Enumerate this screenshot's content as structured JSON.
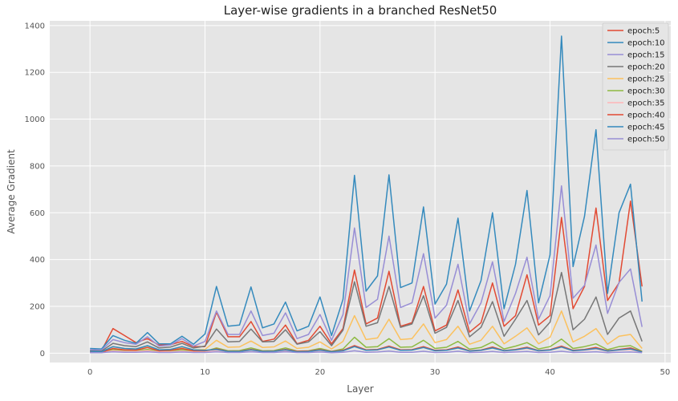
{
  "chart_data": {
    "type": "line",
    "title": "Layer-wise gradients in a branched ResNet50",
    "xlabel": "Layer",
    "ylabel": "Average Gradient",
    "xlim": [
      -3.5,
      50.5
    ],
    "ylim": [
      -40,
      1420
    ],
    "xticks": [
      0,
      10,
      20,
      30,
      40,
      50
    ],
    "yticks": [
      0,
      200,
      400,
      600,
      800,
      1000,
      1200,
      1400
    ],
    "grid": true,
    "legend_position": "top-right",
    "x": [
      0,
      1,
      2,
      3,
      4,
      5,
      6,
      7,
      8,
      9,
      10,
      11,
      12,
      13,
      14,
      15,
      16,
      17,
      18,
      19,
      20,
      21,
      22,
      23,
      24,
      25,
      26,
      27,
      28,
      29,
      30,
      31,
      32,
      33,
      34,
      35,
      36,
      37,
      38,
      39,
      40,
      41,
      42,
      43,
      44,
      45,
      46,
      47,
      48
    ],
    "series": [
      {
        "name": "epoch:5",
        "color": "#E24A33",
        "values": [
          12,
          10,
          105,
          75,
          45,
          62,
          34,
          36,
          50,
          28,
          28,
          175,
          70,
          70,
          135,
          50,
          60,
          120,
          40,
          55,
          115,
          40,
          105,
          355,
          125,
          150,
          350,
          115,
          130,
          285,
          95,
          120,
          270,
          90,
          130,
          300,
          115,
          160,
          335,
          120,
          160,
          580,
          190,
          285,
          620,
          225,
          300,
          650,
          285
        ]
      },
      {
        "name": "epoch:10",
        "color": "#348ABD",
        "values": [
          20,
          18,
          75,
          55,
          42,
          88,
          40,
          40,
          72,
          38,
          82,
          285,
          115,
          120,
          283,
          108,
          125,
          218,
          95,
          115,
          240,
          75,
          230,
          760,
          265,
          330,
          762,
          280,
          300,
          625,
          210,
          295,
          577,
          180,
          310,
          600,
          190,
          380,
          695,
          215,
          420,
          1355,
          370,
          585,
          955,
          255,
          600,
          722,
          220
        ]
      },
      {
        "name": "epoch:15",
        "color": "#988ED5",
        "values": [
          15,
          13,
          58,
          45,
          38,
          70,
          30,
          35,
          62,
          30,
          50,
          180,
          80,
          80,
          180,
          75,
          85,
          172,
          62,
          80,
          165,
          55,
          165,
          535,
          195,
          230,
          500,
          195,
          215,
          425,
          150,
          205,
          380,
          125,
          215,
          390,
          135,
          255,
          410,
          145,
          245,
          715,
          235,
          290,
          462,
          170,
          302,
          360,
          112
        ]
      },
      {
        "name": "epoch:20",
        "color": "#777777",
        "values": [
          10,
          9,
          42,
          32,
          28,
          48,
          22,
          26,
          42,
          22,
          30,
          103,
          48,
          50,
          103,
          48,
          50,
          100,
          38,
          48,
          92,
          32,
          98,
          305,
          115,
          130,
          285,
          110,
          125,
          245,
          85,
          110,
          225,
          70,
          110,
          220,
          72,
          145,
          225,
          78,
          132,
          345,
          100,
          145,
          240,
          80,
          150,
          180,
          50
        ]
      },
      {
        "name": "epoch:25",
        "color": "#FBC15E",
        "values": [
          6,
          5,
          28,
          20,
          18,
          30,
          14,
          16,
          26,
          14,
          16,
          55,
          25,
          27,
          52,
          24,
          27,
          52,
          20,
          25,
          48,
          18,
          50,
          160,
          58,
          65,
          145,
          58,
          62,
          125,
          45,
          58,
          115,
          38,
          55,
          115,
          40,
          72,
          108,
          40,
          68,
          180,
          48,
          72,
          105,
          38,
          72,
          80,
          20
        ]
      },
      {
        "name": "epoch:30",
        "color": "#8EBA42",
        "values": [
          4,
          3,
          15,
          10,
          10,
          16,
          8,
          9,
          14,
          8,
          8,
          22,
          10,
          11,
          22,
          10,
          11,
          22,
          9,
          10,
          20,
          8,
          18,
          68,
          25,
          28,
          62,
          25,
          27,
          55,
          20,
          25,
          50,
          17,
          24,
          48,
          18,
          30,
          45,
          18,
          28,
          60,
          20,
          28,
          40,
          15,
          28,
          32,
          8
        ]
      },
      {
        "name": "epoch:35",
        "color": "#FFB5B8",
        "values": [
          3,
          2,
          10,
          7,
          7,
          11,
          5,
          6,
          9,
          5,
          5,
          12,
          6,
          6,
          12,
          6,
          6,
          11,
          5,
          6,
          10,
          5,
          9,
          30,
          12,
          13,
          28,
          12,
          13,
          25,
          10,
          12,
          23,
          8,
          11,
          22,
          9,
          13,
          20,
          9,
          12,
          25,
          9,
          12,
          18,
          7,
          12,
          15,
          4
        ]
      },
      {
        "name": "epoch:40",
        "color": "#E24A33",
        "values": [
          5,
          4,
          20,
          14,
          13,
          24,
          10,
          12,
          20,
          10,
          10,
          18,
          8,
          8,
          16,
          8,
          9,
          16,
          8,
          9,
          15,
          7,
          12,
          32,
          14,
          16,
          30,
          14,
          15,
          28,
          12,
          14,
          26,
          10,
          13,
          26,
          11,
          16,
          25,
          11,
          15,
          30,
          12,
          16,
          24,
          10,
          16,
          22,
          6
        ]
      },
      {
        "name": "epoch:45",
        "color": "#348ABD",
        "values": [
          8,
          6,
          28,
          20,
          18,
          32,
          14,
          16,
          28,
          14,
          12,
          16,
          7,
          7,
          14,
          7,
          8,
          14,
          6,
          7,
          13,
          6,
          10,
          28,
          12,
          14,
          26,
          12,
          13,
          24,
          10,
          12,
          22,
          9,
          12,
          22,
          10,
          14,
          22,
          10,
          13,
          26,
          10,
          14,
          20,
          9,
          14,
          18,
          5
        ]
      },
      {
        "name": "epoch:50",
        "color": "#988ED5",
        "values": [
          2,
          2,
          6,
          4,
          4,
          6,
          3,
          3,
          5,
          3,
          3,
          6,
          3,
          3,
          6,
          3,
          3,
          6,
          3,
          3,
          5,
          2,
          4,
          10,
          4,
          5,
          9,
          4,
          4,
          8,
          3,
          4,
          8,
          3,
          4,
          7,
          3,
          5,
          7,
          3,
          4,
          8,
          3,
          4,
          6,
          2,
          4,
          5,
          2
        ]
      }
    ]
  }
}
